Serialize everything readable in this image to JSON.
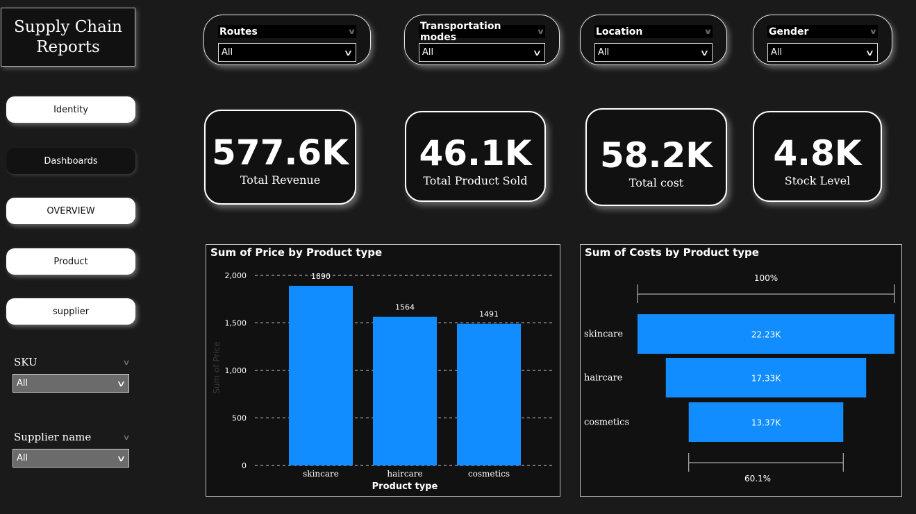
{
  "title": {
    "line1": "Supply Chain",
    "line2": "Reports"
  },
  "nav": [
    "Identity",
    "Dashboards",
    "OVERVIEW",
    "Product",
    "supplier"
  ],
  "side_slicers": [
    {
      "label": "SKU",
      "value": "All"
    },
    {
      "label": "Supplier name",
      "value": "All"
    }
  ],
  "filters": [
    {
      "label": "Routes",
      "value": "All"
    },
    {
      "label": "Transportation modes",
      "value": "All"
    },
    {
      "label": "Location",
      "value": "All"
    },
    {
      "label": "Gender",
      "value": "All"
    }
  ],
  "kpis": [
    {
      "value": "577.6K",
      "caption": "Total Revenue"
    },
    {
      "value": "46.1K",
      "caption": "Total Product Sold"
    },
    {
      "value": "58.2K",
      "caption": "Total  cost"
    },
    {
      "value": "4.8K",
      "caption": "Stock Level"
    }
  ],
  "colors": {
    "bar": "#118dff",
    "background": "#1a1a1a",
    "panel": "#111111"
  },
  "chart_data": [
    {
      "type": "bar",
      "title": "Sum of Price by Product type",
      "xlabel": "Product type",
      "ylabel": "Sum of Price",
      "categories": [
        "skincare",
        "haircare",
        "cosmetics"
      ],
      "values": [
        1890,
        1564,
        1491
      ],
      "data_labels": [
        "1890",
        "1564",
        "1491"
      ],
      "ylim": [
        0,
        2000
      ],
      "yticks": [
        0,
        500,
        1000,
        1500,
        2000
      ],
      "ytick_labels": [
        "0",
        "500",
        "1,000",
        "1,500",
        "2,000"
      ],
      "grid": "dashed horizontal"
    },
    {
      "type": "funnel",
      "title": "Sum of Costs by Product type",
      "categories": [
        "skincare",
        "haircare",
        "cosmetics"
      ],
      "values": [
        22230,
        17330,
        13370
      ],
      "data_labels": [
        "22.23K",
        "17.33K",
        "13.37K"
      ],
      "top_label": "100%",
      "bottom_label": "60.1%"
    }
  ]
}
